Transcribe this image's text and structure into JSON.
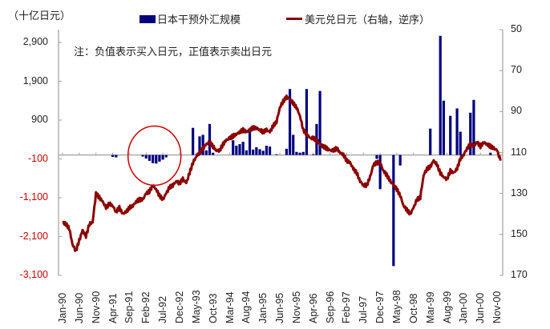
{
  "chart_data": {
    "type": "bar+line",
    "title": "",
    "unit_label": "（十亿日元）",
    "note": "注：负值表示买入日元，正值表示卖出日元",
    "legend": [
      {
        "name": "日本干预外汇规模",
        "type": "bar",
        "color": "#000080",
        "axis": "left"
      },
      {
        "name": "美元兑日元（右轴，逆序）",
        "type": "line",
        "color": "#8b0000",
        "axis": "right"
      }
    ],
    "left_axis": {
      "label": "（十亿日元）",
      "ticks": [
        2900,
        1900,
        900,
        -100,
        -1100,
        -2100,
        -3100
      ],
      "tick_labels": [
        "2,900",
        "1,900",
        "900",
        "-100",
        "-1,100",
        "-2,100",
        "-3,100"
      ],
      "negative_color": "#cc0000",
      "positive_color": "#222222",
      "ylim": [
        -3100,
        3200
      ]
    },
    "right_axis": {
      "label": "美元兑日元（右轴，逆序）",
      "ticks": [
        50,
        70,
        90,
        110,
        130,
        150,
        170
      ],
      "inverted": true,
      "ylim": [
        50,
        170
      ]
    },
    "x_axis": {
      "tick_labels": [
        "Jan-90",
        "Jun-90",
        "Nov-90",
        "Apr-91",
        "Sep-91",
        "Feb-92",
        "Jul-92",
        "Dec-92",
        "May-93",
        "Oct-93",
        "Mar-94",
        "Aug-94",
        "Jan-95",
        "Jun-95",
        "Nov-95",
        "Apr-96",
        "Sep-96",
        "Feb-97",
        "Jul-97",
        "Dec-97",
        "May-98",
        "Oct-98",
        "Mar-99",
        "Aug-99",
        "Jan-00",
        "Jun-00",
        "Nov-00"
      ],
      "start": "Jan-90",
      "months": 132
    },
    "bars": [
      {
        "m": 15,
        "v": -50
      },
      {
        "m": 16,
        "v": -60
      },
      {
        "m": 24,
        "v": -40
      },
      {
        "m": 25,
        "v": -90
      },
      {
        "m": 26,
        "v": -150
      },
      {
        "m": 27,
        "v": -210
      },
      {
        "m": 28,
        "v": -220
      },
      {
        "m": 29,
        "v": -170
      },
      {
        "m": 30,
        "v": -120
      },
      {
        "m": 31,
        "v": -60
      },
      {
        "m": 39,
        "v": 700
      },
      {
        "m": 40,
        "v": 20
      },
      {
        "m": 41,
        "v": 480
      },
      {
        "m": 42,
        "v": 520
      },
      {
        "m": 43,
        "v": 120
      },
      {
        "m": 44,
        "v": 800
      },
      {
        "m": 45,
        "v": 60
      },
      {
        "m": 51,
        "v": 380
      },
      {
        "m": 52,
        "v": 240
      },
      {
        "m": 53,
        "v": 280
      },
      {
        "m": 54,
        "v": 340
      },
      {
        "m": 55,
        "v": 120
      },
      {
        "m": 56,
        "v": 600
      },
      {
        "m": 57,
        "v": 140
      },
      {
        "m": 58,
        "v": 200
      },
      {
        "m": 59,
        "v": 150
      },
      {
        "m": 60,
        "v": 110
      },
      {
        "m": 61,
        "v": 240
      },
      {
        "m": 62,
        "v": 220
      },
      {
        "m": 64,
        "v": 20
      },
      {
        "m": 67,
        "v": 160
      },
      {
        "m": 68,
        "v": 1700
      },
      {
        "m": 69,
        "v": 520
      },
      {
        "m": 70,
        "v": 80
      },
      {
        "m": 71,
        "v": 60
      },
      {
        "m": 72,
        "v": 80
      },
      {
        "m": 73,
        "v": 1700
      },
      {
        "m": 75,
        "v": 20
      },
      {
        "m": 76,
        "v": 800
      },
      {
        "m": 77,
        "v": 1650
      },
      {
        "m": 94,
        "v": -100
      },
      {
        "m": 95,
        "v": -880
      },
      {
        "m": 99,
        "v": -2860
      },
      {
        "m": 101,
        "v": -270
      },
      {
        "m": 110,
        "v": 680
      },
      {
        "m": 113,
        "v": 3070
      },
      {
        "m": 114,
        "v": 1400
      },
      {
        "m": 116,
        "v": 1010
      },
      {
        "m": 118,
        "v": 1200
      },
      {
        "m": 119,
        "v": 600
      },
      {
        "m": 122,
        "v": 1090
      },
      {
        "m": 123,
        "v": 1420
      },
      {
        "m": 128,
        "v": 60
      }
    ],
    "usd_jpy": [
      [
        0,
        144
      ],
      [
        1,
        145
      ],
      [
        2,
        147
      ],
      [
        3,
        155
      ],
      [
        4,
        158
      ],
      [
        5,
        153
      ],
      [
        6,
        148
      ],
      [
        7,
        151
      ],
      [
        8,
        145
      ],
      [
        9,
        144
      ],
      [
        10,
        130
      ],
      [
        11,
        132
      ],
      [
        12,
        134
      ],
      [
        13,
        137
      ],
      [
        14,
        135
      ],
      [
        15,
        136
      ],
      [
        16,
        139
      ],
      [
        17,
        137
      ],
      [
        18,
        140
      ],
      [
        19,
        139
      ],
      [
        20,
        137
      ],
      [
        21,
        136
      ],
      [
        22,
        134
      ],
      [
        23,
        133
      ],
      [
        24,
        133
      ],
      [
        25,
        130
      ],
      [
        26,
        129
      ],
      [
        27,
        126
      ],
      [
        28,
        128
      ],
      [
        29,
        131
      ],
      [
        30,
        133
      ],
      [
        31,
        130
      ],
      [
        32,
        127
      ],
      [
        33,
        126
      ],
      [
        34,
        124
      ],
      [
        35,
        125
      ],
      [
        36,
        123
      ],
      [
        37,
        125
      ],
      [
        38,
        120
      ],
      [
        39,
        115
      ],
      [
        40,
        112
      ],
      [
        41,
        110
      ],
      [
        42,
        108
      ],
      [
        43,
        106
      ],
      [
        44,
        105
      ],
      [
        45,
        107
      ],
      [
        46,
        109
      ],
      [
        47,
        109
      ],
      [
        48,
        106
      ],
      [
        49,
        104
      ],
      [
        50,
        103
      ],
      [
        51,
        102
      ],
      [
        52,
        101
      ],
      [
        53,
        100
      ],
      [
        54,
        99
      ],
      [
        55,
        100
      ],
      [
        56,
        99
      ],
      [
        57,
        98
      ],
      [
        58,
        98
      ],
      [
        59,
        99
      ],
      [
        60,
        100
      ],
      [
        61,
        99
      ],
      [
        62,
        100
      ],
      [
        63,
        97
      ],
      [
        64,
        95
      ],
      [
        65,
        88
      ],
      [
        66,
        85
      ],
      [
        67,
        83
      ],
      [
        68,
        84
      ],
      [
        69,
        86
      ],
      [
        70,
        88
      ],
      [
        71,
        92
      ],
      [
        72,
        99
      ],
      [
        73,
        101
      ],
      [
        74,
        103
      ],
      [
        75,
        103
      ],
      [
        76,
        104
      ],
      [
        77,
        106
      ],
      [
        78,
        107
      ],
      [
        79,
        108
      ],
      [
        80,
        109
      ],
      [
        81,
        109
      ],
      [
        82,
        108
      ],
      [
        83,
        110
      ],
      [
        84,
        111
      ],
      [
        85,
        114
      ],
      [
        86,
        115
      ],
      [
        87,
        118
      ],
      [
        88,
        120
      ],
      [
        89,
        124
      ],
      [
        90,
        126
      ],
      [
        91,
        126
      ],
      [
        92,
        122
      ],
      [
        93,
        116
      ],
      [
        94,
        115
      ],
      [
        95,
        115
      ],
      [
        96,
        119
      ],
      [
        97,
        121
      ],
      [
        98,
        124
      ],
      [
        99,
        126
      ],
      [
        100,
        128
      ],
      [
        101,
        131
      ],
      [
        102,
        136
      ],
      [
        103,
        138
      ],
      [
        104,
        140
      ],
      [
        105,
        137
      ],
      [
        106,
        133
      ],
      [
        107,
        132
      ],
      [
        108,
        121
      ],
      [
        109,
        118
      ],
      [
        110,
        117
      ],
      [
        111,
        114
      ],
      [
        112,
        116
      ],
      [
        113,
        120
      ],
      [
        114,
        122
      ],
      [
        115,
        123
      ],
      [
        116,
        119
      ],
      [
        117,
        120
      ],
      [
        118,
        118
      ],
      [
        119,
        113
      ],
      [
        120,
        111
      ],
      [
        121,
        108
      ],
      [
        122,
        106
      ],
      [
        123,
        107
      ],
      [
        124,
        105
      ],
      [
        125,
        107
      ],
      [
        126,
        105
      ],
      [
        127,
        106
      ],
      [
        128,
        107
      ],
      [
        129,
        108
      ],
      [
        130,
        109
      ],
      [
        131,
        114
      ]
    ],
    "annotation_circle": {
      "cx_month": 27.5,
      "value_center": -100,
      "color": "#cc0000"
    }
  }
}
